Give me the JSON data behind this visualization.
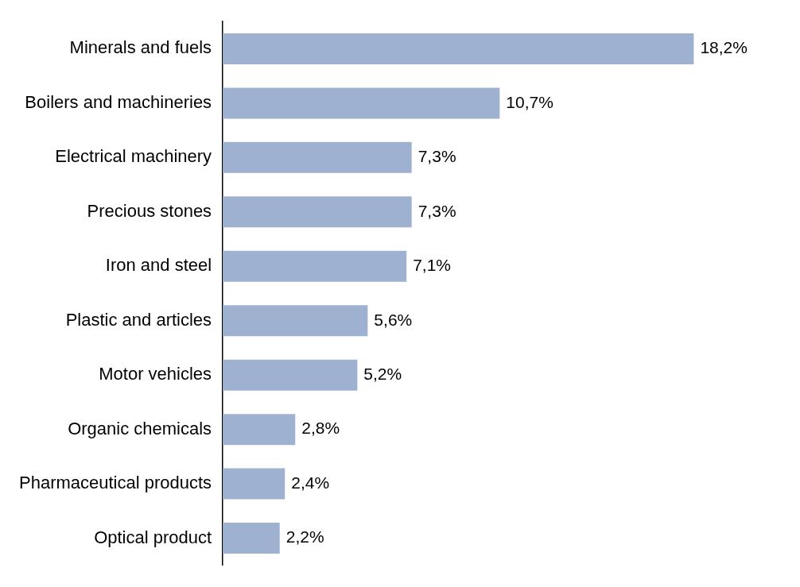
{
  "chart_data": {
    "type": "bar",
    "orientation": "horizontal",
    "categories": [
      "Minerals and fuels",
      "Boilers and machineries",
      "Electrical machinery",
      "Precious stones",
      "Iron and steel",
      "Plastic and articles",
      "Motor vehicles",
      "Organic chemicals",
      "Pharmaceutical products",
      "Optical product"
    ],
    "values": [
      18.2,
      10.7,
      7.3,
      7.3,
      7.1,
      5.6,
      5.2,
      2.8,
      2.4,
      2.2
    ],
    "value_labels": [
      "18,2%",
      "10,7%",
      "7,3%",
      "7,3%",
      "7,1%",
      "5,6%",
      "5,2%",
      "2,8%",
      "2,4%",
      "2,2%"
    ],
    "color": "#9fb1d0"
  }
}
